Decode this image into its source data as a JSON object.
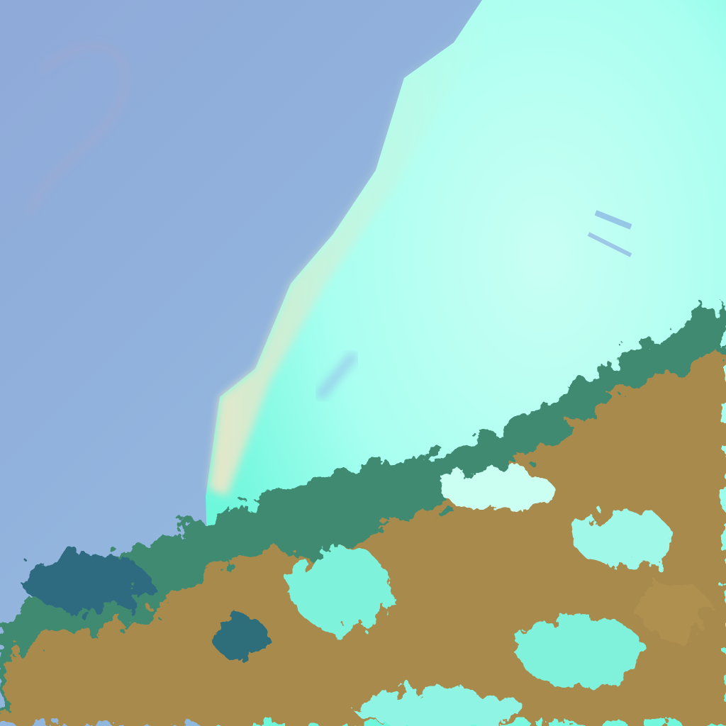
{
  "image": {
    "kind": "false-color satellite image",
    "colors": {
      "ocean": "#8eb3dc",
      "ocean_haze": "#a9b0d6",
      "cloud_bright": "#c8fff0",
      "cloud_cyan": "#5ff5d8",
      "cloud_edge": "#e6f2c8",
      "land_brown": "#b08a4a",
      "land_green": "#3a8a6a",
      "land_dark": "#2a4f6a"
    }
  }
}
